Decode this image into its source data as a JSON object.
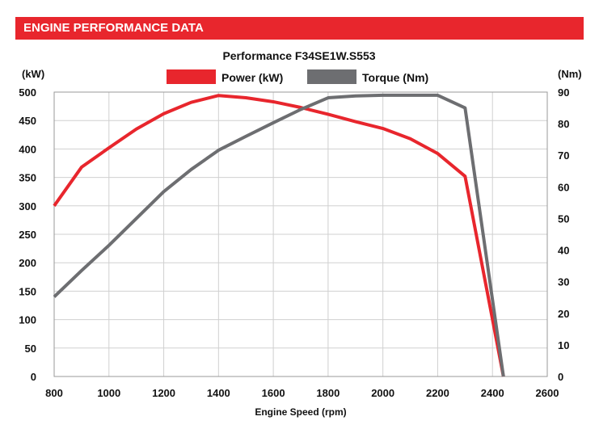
{
  "header": {
    "title": "ENGINE PERFORMANCE DATA"
  },
  "chart_data": {
    "type": "line",
    "title": "Performance F34SE1W.S553",
    "xlabel": "Engine Speed (rpm)",
    "ylabel": "(kW)",
    "y2label": "(Nm)",
    "xlim": [
      800,
      2600
    ],
    "ylim": [
      0,
      500
    ],
    "y2lim": [
      0,
      90
    ],
    "xticks": [
      800,
      1000,
      1200,
      1400,
      1600,
      1800,
      2000,
      2200,
      2400,
      2600
    ],
    "yticks": [
      0,
      50,
      100,
      150,
      200,
      250,
      300,
      350,
      400,
      450,
      500
    ],
    "y2ticks": [
      0,
      10,
      20,
      30,
      40,
      50,
      60,
      70,
      80,
      90
    ],
    "grid": true,
    "legend_position": "top",
    "series": [
      {
        "name": "Power (kW)",
        "axis": "left",
        "color": "#e8262d",
        "x": [
          800,
          900,
          1000,
          1100,
          1200,
          1300,
          1400,
          1500,
          1600,
          1700,
          1800,
          1900,
          2000,
          2100,
          2200,
          2300,
          2440
        ],
        "y": [
          300,
          368,
          402,
          435,
          462,
          482,
          494,
          490,
          483,
          473,
          461,
          448,
          436,
          418,
          392,
          352,
          0
        ]
      },
      {
        "name": "Torque (Nm)",
        "axis": "right",
        "color": "#6d6e71",
        "x": [
          800,
          900,
          1000,
          1100,
          1200,
          1300,
          1400,
          1500,
          1600,
          1700,
          1800,
          1900,
          2000,
          2100,
          2200,
          2300,
          2440
        ],
        "y": [
          25.2,
          33.5,
          41.5,
          50,
          58.5,
          65.5,
          71.6,
          76,
          80.3,
          84.5,
          88.2,
          88.8,
          89,
          89,
          89,
          85,
          0
        ]
      }
    ]
  }
}
